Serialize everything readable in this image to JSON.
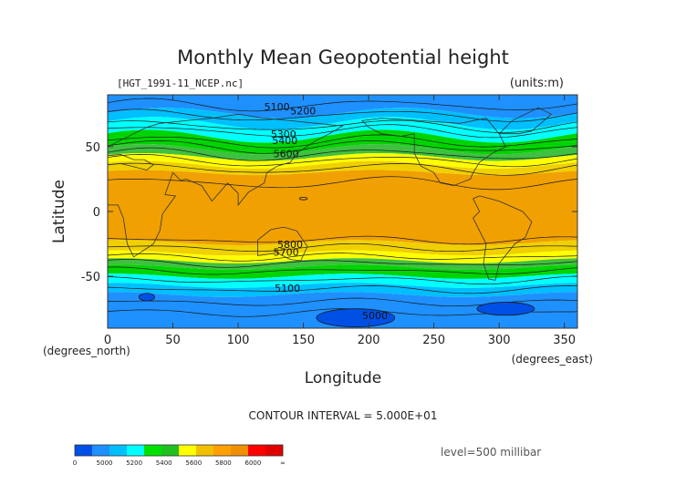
{
  "chart_data": {
    "type": "heatmap",
    "title": "Monthly Mean Geopotential height",
    "file_label": "[HGT_1991-11_NCEP.nc]",
    "units_label": "(units:m)",
    "xlabel": "Longitude",
    "ylabel": "Latitude",
    "x_unit_label": "(degrees_east)",
    "y_unit_label": "(degrees_north)",
    "xlim": [
      0,
      360
    ],
    "ylim": [
      -90,
      90
    ],
    "x_ticks": [
      0,
      50,
      100,
      150,
      200,
      250,
      300,
      350
    ],
    "y_ticks": [
      -50,
      0,
      50
    ],
    "contour_interval_text": "CONTOUR INTERVAL = 5.000E+01",
    "level_text": "level=500 millibar",
    "colorbar": {
      "colors": [
        "#0050e6",
        "#1e90ff",
        "#00bfff",
        "#00ffff",
        "#00e000",
        "#20c020",
        "#ffff00",
        "#f0c000",
        "#ffa000",
        "#f09000",
        "#ff0000",
        "#e00000"
      ],
      "tick_labels": [
        "0",
        "5000",
        "5200",
        "5400",
        "5600",
        "5800",
        "6000",
        "∞"
      ]
    },
    "contour_labels": [
      {
        "text": "5100",
        "lon": 120,
        "lat": 78
      },
      {
        "text": "5200",
        "lon": 140,
        "lat": 75
      },
      {
        "text": "5300",
        "lon": 125,
        "lat": 57
      },
      {
        "text": "5400",
        "lon": 126,
        "lat": 52
      },
      {
        "text": "5600",
        "lon": 127,
        "lat": 42
      },
      {
        "text": "5800",
        "lon": 130,
        "lat": -28
      },
      {
        "text": "5700",
        "lon": 127,
        "lat": -34
      },
      {
        "text": "5100",
        "lon": 128,
        "lat": -62
      },
      {
        "text": "5000",
        "lon": 195,
        "lat": -83
      }
    ]
  }
}
